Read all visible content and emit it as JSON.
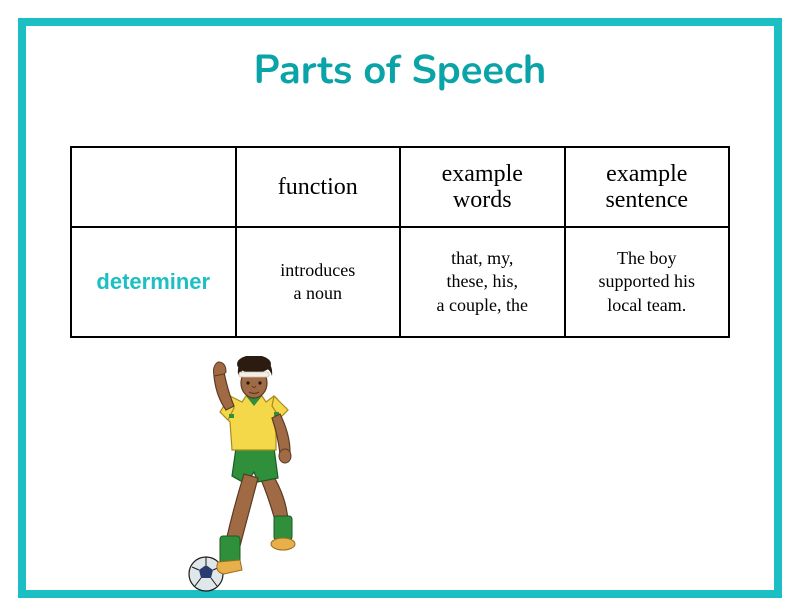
{
  "title": "Parts of Speech",
  "colors": {
    "border": "#1cbfc4",
    "title": "#09a3a8",
    "partName": "#1cbfc4",
    "tableBorder": "#000000",
    "background": "#ffffff"
  },
  "typography": {
    "title_fontsize": 40,
    "header_fontsize": 24,
    "cell_fontsize": 18,
    "partname_fontsize": 22
  },
  "table": {
    "columns": [
      "",
      "function",
      "example\nwords",
      "example\nsentence"
    ],
    "rows": [
      {
        "part": "determiner",
        "function": "introduces\na noun",
        "exampleWords": "that, my,\nthese, his,\na couple, the",
        "exampleSentence": "The boy\nsupported his\nlocal team."
      }
    ]
  },
  "illustration": {
    "name": "soccer-player-icon",
    "skin": "#a06a45",
    "hair": "#2b1b10",
    "shirt": "#f4d84a",
    "shirt_trim": "#2f8f3a",
    "shorts": "#2f8f3a",
    "socks": "#2f8f3a",
    "shoes": "#e8b04a",
    "ball_main": "#dfe7ea",
    "ball_pent": "#2a3b6f",
    "headband": "#f4efe6"
  }
}
